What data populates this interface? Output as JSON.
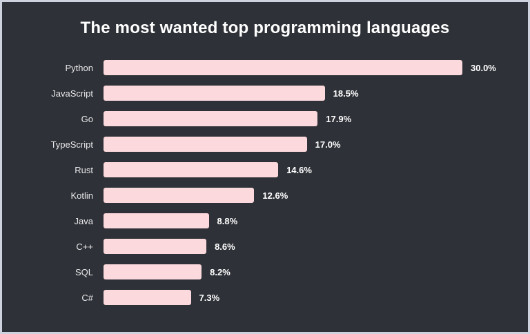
{
  "title": "The most wanted top programming languages",
  "colors": {
    "background": "#2e3137",
    "frame_border": "#ced1de",
    "bar": "#fbd9dc",
    "title_text": "#ffffff",
    "category_text": "#e9e9ec",
    "value_text": "#ffffff"
  },
  "chart_data": {
    "type": "bar",
    "orientation": "horizontal",
    "title": "The most wanted top programming languages",
    "xlabel": "",
    "ylabel": "",
    "xlim": [
      0,
      30
    ],
    "grid": false,
    "legend": false,
    "categories": [
      "Python",
      "JavaScript",
      "Go",
      "TypeScript",
      "Rust",
      "Kotlin",
      "Java",
      "C++",
      "SQL",
      "C#"
    ],
    "values": [
      30.0,
      18.5,
      17.9,
      17.0,
      14.6,
      12.6,
      8.8,
      8.6,
      8.2,
      7.3
    ],
    "value_labels": [
      "30.0%",
      "18.5%",
      "17.9%",
      "17.0%",
      "14.6%",
      "12.6%",
      "8.8%",
      "8.6%",
      "8.2%",
      "7.3%"
    ]
  }
}
